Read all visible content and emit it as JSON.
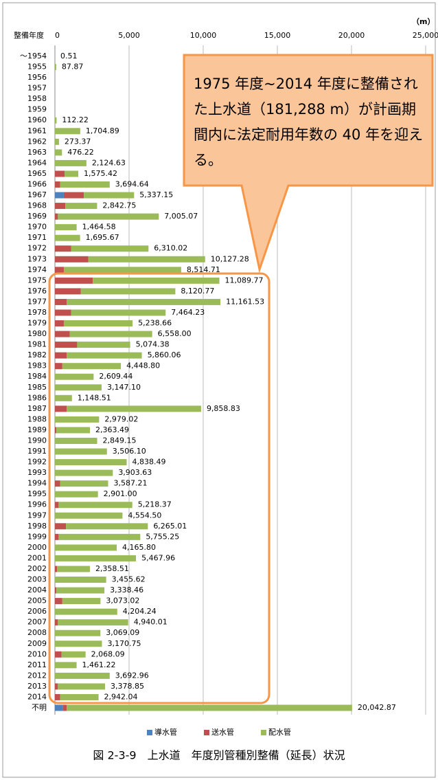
{
  "chart_data": {
    "type": "stacked-barh",
    "unit": "（m）",
    "y_axis_label": "整備年度",
    "annotation": "1975 年度~2014 年度に整備された上水道（181,288 m）が計画期間内に法定耐用年数の 40 年を迎える。",
    "caption": "図 2-3-9　上水道　年度別管種別整備（延長）状況",
    "categories": [
      "～1954",
      "1955",
      "1956",
      "1957",
      "1958",
      "1959",
      "1960",
      "1961",
      "1962",
      "1963",
      "1964",
      "1965",
      "1966",
      "1967",
      "1968",
      "1969",
      "1970",
      "1971",
      "1972",
      "1973",
      "1974",
      "1975",
      "1976",
      "1977",
      "1978",
      "1979",
      "1980",
      "1981",
      "1982",
      "1983",
      "1984",
      "1985",
      "1986",
      "1987",
      "1988",
      "1989",
      "1990",
      "1991",
      "1992",
      "1993",
      "1994",
      "1995",
      "1996",
      "1997",
      "1998",
      "1999",
      "2000",
      "2001",
      "2002",
      "2003",
      "2004",
      "2005",
      "2006",
      "2007",
      "2008",
      "2009",
      "2010",
      "2011",
      "2012",
      "2013",
      "2014",
      "不明"
    ],
    "series": [
      {
        "name": "導水管",
        "color": "#4f81bd",
        "values": [
          0,
          0,
          null,
          null,
          null,
          null,
          0,
          0,
          0,
          0,
          0,
          0,
          0,
          600,
          0,
          0,
          0,
          0,
          0,
          0,
          0,
          0,
          0,
          0,
          0,
          0,
          0,
          0,
          0,
          0,
          0,
          0,
          0,
          0,
          0,
          0,
          0,
          0,
          0,
          0,
          0,
          0,
          0,
          0,
          0,
          0,
          0,
          0,
          0,
          0,
          0,
          0,
          0,
          0,
          0,
          0,
          0,
          0,
          0,
          0,
          0,
          550
        ]
      },
      {
        "name": "送水管",
        "color": "#c0504d",
        "values": [
          0,
          0,
          null,
          null,
          null,
          null,
          0,
          0,
          0,
          0,
          0,
          650,
          350,
          1350,
          700,
          200,
          0,
          0,
          1100,
          2250,
          600,
          2550,
          1750,
          800,
          1100,
          600,
          1000,
          1500,
          800,
          500,
          0,
          0,
          0,
          800,
          0,
          100,
          0,
          0,
          0,
          0,
          350,
          0,
          250,
          0,
          750,
          250,
          0,
          0,
          150,
          0,
          100,
          500,
          0,
          200,
          0,
          0,
          450,
          0,
          0,
          200,
          350,
          250
        ]
      },
      {
        "name": "配水管",
        "color": "#9bbb59",
        "values": [
          0.51,
          87.87,
          null,
          null,
          null,
          null,
          112.22,
          1704.89,
          273.37,
          476.22,
          2124.63,
          925.42,
          3344.64,
          3387.15,
          2142.75,
          6805.07,
          1464.58,
          1695.67,
          5210.02,
          7877.28,
          7914.71,
          8539.77,
          6370.77,
          10361.53,
          6364.23,
          4638.66,
          5558,
          3574.38,
          5060.06,
          3948.8,
          2609.44,
          3147.1,
          1148.51,
          9058.83,
          2979.02,
          2263.49,
          2849.15,
          3506.1,
          4838.49,
          3903.63,
          3237.21,
          2901,
          4968.37,
          4554.5,
          5515.01,
          5505.25,
          4165.8,
          5467.96,
          2208.51,
          3455.62,
          3238.46,
          2573.02,
          4204.24,
          4740.01,
          3069.09,
          3170.75,
          1618.09,
          1461.22,
          3692.96,
          3178.85,
          2592.04,
          19242.87
        ]
      }
    ],
    "totals": [
      0.51,
      87.87,
      null,
      null,
      null,
      null,
      112.22,
      1704.89,
      273.37,
      476.22,
      2124.63,
      1575.42,
      3694.64,
      5337.15,
      2842.75,
      7005.07,
      1464.58,
      1695.67,
      6310.02,
      10127.28,
      8514.71,
      11089.77,
      8120.77,
      11161.53,
      7464.23,
      5238.66,
      6558,
      5074.38,
      5860.06,
      4448.8,
      2609.44,
      3147.1,
      1148.51,
      9858.83,
      2979.02,
      2363.49,
      2849.15,
      3506.1,
      4838.49,
      3903.63,
      3587.21,
      2901,
      5218.37,
      4554.5,
      6265.01,
      5755.25,
      4165.8,
      5467.96,
      2358.51,
      3455.62,
      3338.46,
      3073.02,
      4204.24,
      4940.01,
      3069.09,
      3170.75,
      2068.09,
      1461.22,
      3692.96,
      3378.85,
      2942.04,
      20042.87
    ],
    "total_labels": [
      "0.51",
      "87.87",
      null,
      null,
      null,
      null,
      "112.22",
      "1,704.89",
      "273.37",
      "476.22",
      "2,124.63",
      "1,575.42",
      "3,694.64",
      "5,337.15",
      "2,842.75",
      "7,005.07",
      "1,464.58",
      "1,695.67",
      "6,310.02",
      "10,127.28",
      "8,514.71",
      "11,089.77",
      "8,120.77",
      "11,161.53",
      "7,464.23",
      "5,238.66",
      "6,558.00",
      "5,074.38",
      "5,860.06",
      "4,448.80",
      "2,609.44",
      "3,147.10",
      "1,148.51",
      "9,858.83",
      "2,979.02",
      "2,363.49",
      "2,849.15",
      "3,506.10",
      "4,838.49",
      "3,903.63",
      "3,587.21",
      "2,901.00",
      "5,218.37",
      "4,554.50",
      "6,265.01",
      "5,755.25",
      "4,165.80",
      "5,467.96",
      "2,358.51",
      "3,455.62",
      "3,338.46",
      "3,073.02",
      "4,204.24",
      "4,940.01",
      "3,069.09",
      "3,170.75",
      "2,068.09",
      "1,461.22",
      "3,692.96",
      "3,378.85",
      "2,942.04",
      "20,042.87"
    ],
    "xlim": [
      0,
      25000
    ],
    "xticks": [
      0,
      {
        "value": 5000,
        "label": "5,000"
      },
      {
        "value": 10000,
        "label": "10,000"
      },
      {
        "value": 15000,
        "label": "15,000"
      },
      {
        "value": 20000,
        "label": "20,000"
      },
      {
        "value": 25000,
        "label": "25,000"
      }
    ],
    "grid": true,
    "legend": "bottom"
  }
}
